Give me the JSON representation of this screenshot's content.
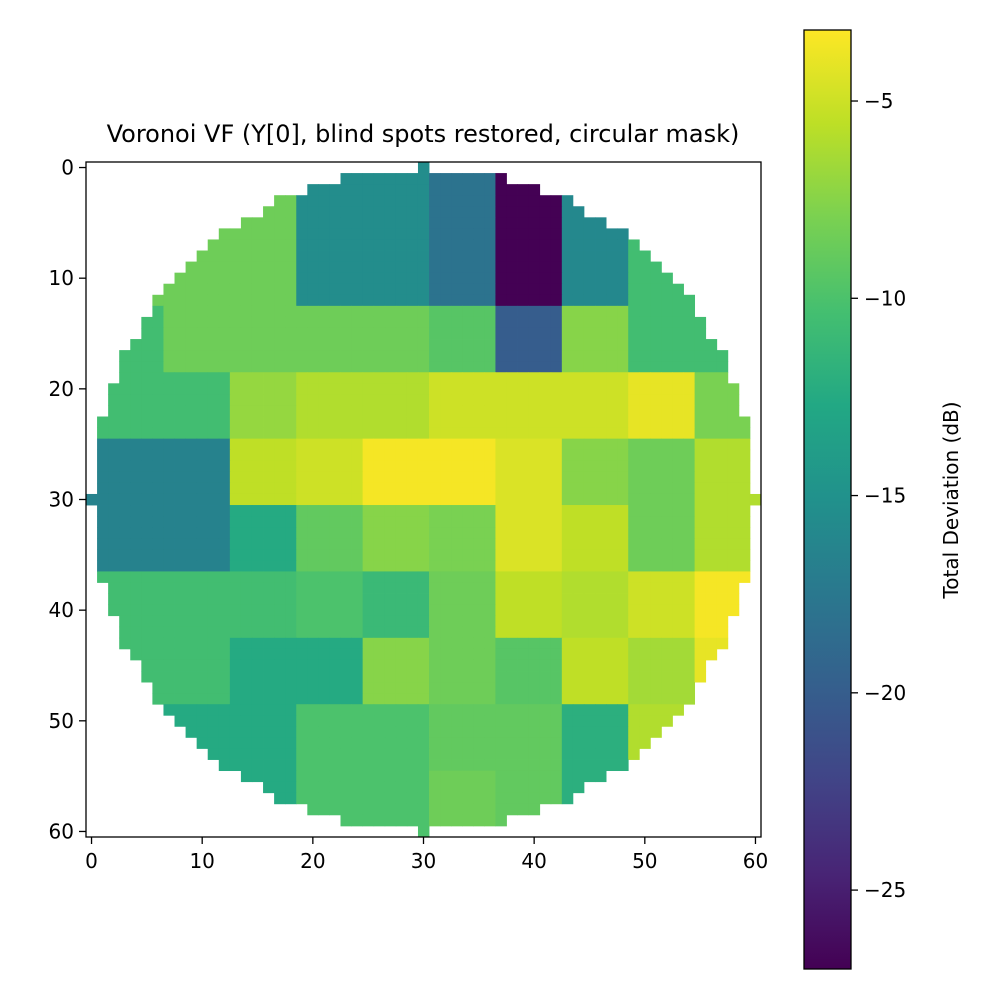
{
  "chart_data": {
    "type": "heatmap",
    "title": "Voronoi VF (Y[0], blind spots restored, circular mask)",
    "xlabel": "",
    "ylabel": "",
    "xlim": [
      -0.5,
      60.5
    ],
    "ylim": [
      60.5,
      -0.5
    ],
    "xticks": [
      0,
      10,
      20,
      30,
      40,
      50,
      60
    ],
    "yticks": [
      0,
      10,
      20,
      30,
      40,
      50,
      60
    ],
    "colormap": "viridis",
    "colorbar": {
      "label": "Total Deviation (dB)",
      "range": [
        -27,
        -3.2
      ],
      "ticks": [
        -5,
        -10,
        -15,
        -20,
        -25
      ]
    },
    "mask": {
      "shape": "circle",
      "center": [
        30,
        30
      ],
      "radius": 30
    },
    "row_edges": [
      -0.5,
      12.5,
      18.5,
      24.5,
      30.5,
      36.5,
      42.5,
      48.5,
      54.5,
      60.5
    ],
    "col_edges": [
      -0.5,
      6.5,
      12.5,
      18.5,
      24.5,
      30.5,
      36.5,
      42.5,
      48.5,
      54.5,
      60.5
    ],
    "values": [
      [
        -8.5,
        -8.5,
        -8.5,
        -15.5,
        -15.5,
        -18.0,
        -27.0,
        -16.0,
        -10.5,
        -10.5
      ],
      [
        -10.5,
        -8.5,
        -8.5,
        -8.5,
        -8.5,
        -9.5,
        -20.0,
        -7.5,
        -10.5,
        -10.5
      ],
      [
        -10.5,
        -10.5,
        -7.0,
        -6.0,
        -6.0,
        -5.0,
        -5.0,
        -5.0,
        -4.0,
        -8.0
      ],
      [
        -16.5,
        -16.5,
        -5.5,
        -5.0,
        -3.5,
        -3.5,
        -4.5,
        -7.5,
        -8.5,
        -6.0
      ],
      [
        -16.5,
        -16.5,
        -12.5,
        -9.0,
        -7.5,
        -8.0,
        -4.5,
        -5.5,
        -8.5,
        -6.0
      ],
      [
        -10.5,
        -10.5,
        -10.5,
        -10.0,
        -11.0,
        -8.5,
        -5.5,
        -6.0,
        -5.0,
        -3.5
      ],
      [
        -10.5,
        -10.5,
        -12.5,
        -12.5,
        -7.5,
        -8.5,
        -9.5,
        -5.5,
        -6.5,
        -4.0
      ],
      [
        -12.5,
        -12.5,
        -12.5,
        -10.0,
        -10.0,
        -9.0,
        -9.0,
        -12.0,
        -6.0,
        -6.0
      ],
      [
        -12.5,
        -12.5,
        -12.5,
        -10.0,
        -10.0,
        -8.5,
        -9.0,
        -12.0,
        -12.0,
        -12.0
      ]
    ]
  }
}
